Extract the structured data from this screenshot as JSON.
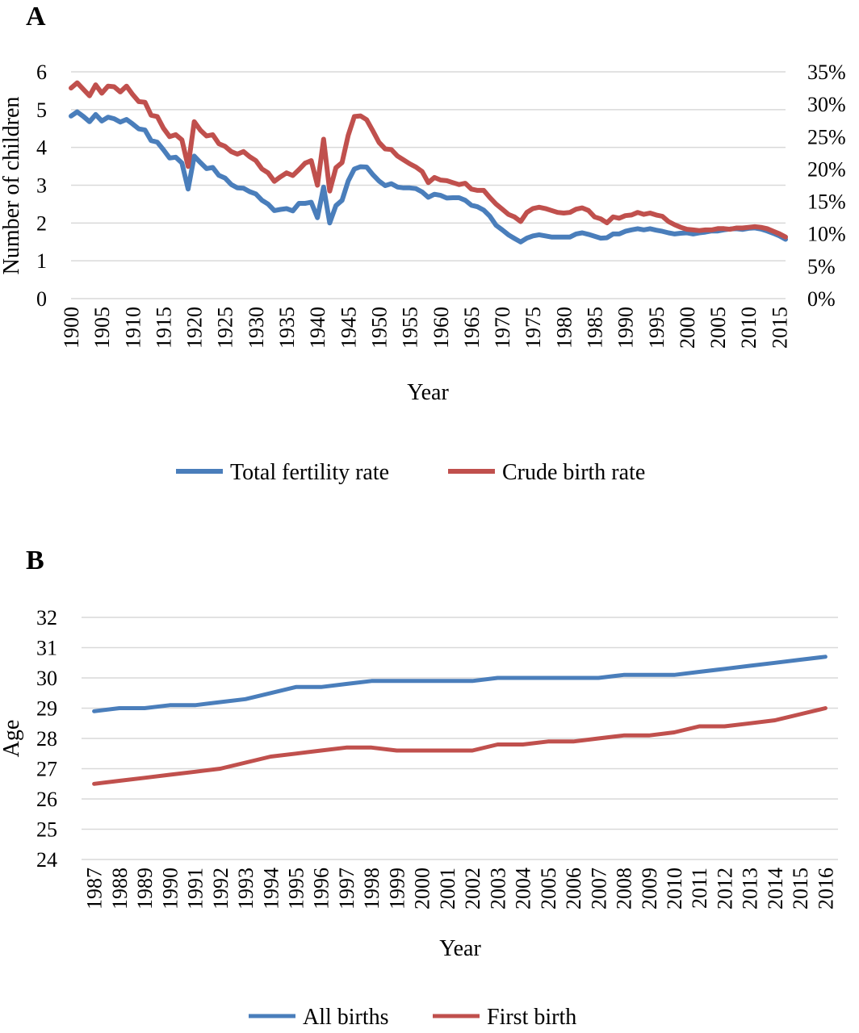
{
  "chart_data": [
    {
      "panel": "A",
      "type": "line",
      "xlabel": "Year",
      "ylabel": "Number of children",
      "ylim": [
        0,
        6
      ],
      "y_ticks": [
        "0",
        "1",
        "2",
        "3",
        "4",
        "5",
        "6"
      ],
      "y2lim": [
        0,
        35
      ],
      "y2_ticks": [
        "0%",
        "5%",
        "10%",
        "15%",
        "20%",
        "25%",
        "30%",
        "35%"
      ],
      "x_ticks": [
        "1900",
        "1905",
        "1910",
        "1915",
        "1920",
        "1925",
        "1930",
        "1935",
        "1940",
        "1945",
        "1950",
        "1955",
        "1960",
        "1965",
        "1970",
        "1975",
        "1980",
        "1985",
        "1990",
        "1995",
        "2000",
        "2005",
        "2010",
        "2015"
      ],
      "grid": true,
      "legend_position": "bottom",
      "x": [
        1900,
        1901,
        1902,
        1903,
        1904,
        1905,
        1906,
        1907,
        1908,
        1909,
        1910,
        1911,
        1912,
        1913,
        1914,
        1915,
        1916,
        1917,
        1918,
        1919,
        1920,
        1921,
        1922,
        1923,
        1924,
        1925,
        1926,
        1927,
        1928,
        1929,
        1930,
        1931,
        1932,
        1933,
        1934,
        1935,
        1936,
        1937,
        1938,
        1939,
        1940,
        1941,
        1942,
        1943,
        1944,
        1945,
        1946,
        1947,
        1948,
        1949,
        1950,
        1951,
        1952,
        1953,
        1954,
        1955,
        1956,
        1957,
        1958,
        1959,
        1960,
        1961,
        1962,
        1963,
        1964,
        1965,
        1966,
        1967,
        1968,
        1969,
        1970,
        1971,
        1972,
        1973,
        1974,
        1975,
        1976,
        1977,
        1978,
        1979,
        1980,
        1981,
        1982,
        1983,
        1984,
        1985,
        1986,
        1987,
        1988,
        1989,
        1990,
        1991,
        1992,
        1993,
        1994,
        1995,
        1996,
        1997,
        1998,
        1999,
        2000,
        2001,
        2002,
        2003,
        2004,
        2005,
        2006,
        2007,
        2008,
        2009,
        2010,
        2011,
        2012,
        2013,
        2014,
        2015,
        2016
      ],
      "series": [
        {
          "name": "Total fertility rate",
          "axis": "left",
          "color": "#4a7ebb",
          "values": [
            4.83,
            4.94,
            4.82,
            4.68,
            4.87,
            4.7,
            4.8,
            4.76,
            4.67,
            4.74,
            4.62,
            4.49,
            4.46,
            4.18,
            4.14,
            3.94,
            3.72,
            3.74,
            3.59,
            2.9,
            3.77,
            3.6,
            3.44,
            3.47,
            3.26,
            3.19,
            3.02,
            2.93,
            2.92,
            2.83,
            2.77,
            2.6,
            2.5,
            2.33,
            2.36,
            2.38,
            2.32,
            2.52,
            2.52,
            2.55,
            2.14,
            2.95,
            2.0,
            2.46,
            2.6,
            3.11,
            3.43,
            3.49,
            3.48,
            3.28,
            3.11,
            2.99,
            3.04,
            2.95,
            2.93,
            2.93,
            2.91,
            2.82,
            2.68,
            2.76,
            2.73,
            2.66,
            2.67,
            2.67,
            2.6,
            2.47,
            2.43,
            2.34,
            2.18,
            1.94,
            1.82,
            1.69,
            1.59,
            1.5,
            1.6,
            1.66,
            1.69,
            1.66,
            1.63,
            1.63,
            1.63,
            1.63,
            1.71,
            1.74,
            1.7,
            1.65,
            1.6,
            1.61,
            1.71,
            1.71,
            1.78,
            1.82,
            1.85,
            1.82,
            1.85,
            1.81,
            1.78,
            1.74,
            1.71,
            1.73,
            1.74,
            1.71,
            1.74,
            1.76,
            1.79,
            1.79,
            1.82,
            1.84,
            1.85,
            1.83,
            1.86,
            1.87,
            1.84,
            1.79,
            1.73,
            1.66,
            1.57
          ]
        },
        {
          "name": "Crude birth rate",
          "axis": "right",
          "color": "#c0504d",
          "values": [
            32.5,
            33.3,
            32.3,
            31.3,
            33.0,
            31.7,
            32.8,
            32.7,
            31.9,
            32.8,
            31.5,
            30.4,
            30.3,
            28.3,
            28.1,
            26.3,
            25.0,
            25.3,
            24.5,
            20.4,
            27.3,
            26.0,
            25.1,
            25.3,
            23.9,
            23.5,
            22.7,
            22.3,
            22.7,
            21.9,
            21.3,
            20.0,
            19.4,
            18.1,
            18.8,
            19.4,
            19.0,
            19.9,
            20.9,
            21.3,
            17.5,
            24.6,
            16.6,
            20.2,
            21.0,
            25.2,
            28.1,
            28.2,
            27.6,
            25.9,
            24.1,
            23.1,
            23.0,
            22.0,
            21.4,
            20.8,
            20.3,
            19.6,
            17.9,
            18.7,
            18.3,
            18.2,
            17.9,
            17.6,
            17.8,
            16.9,
            16.7,
            16.7,
            15.6,
            14.6,
            13.8,
            13.0,
            12.6,
            11.9,
            13.3,
            13.9,
            14.1,
            13.9,
            13.6,
            13.3,
            13.2,
            13.3,
            13.8,
            14.0,
            13.6,
            12.6,
            12.3,
            11.7,
            12.6,
            12.4,
            12.8,
            12.9,
            13.3,
            13.0,
            13.2,
            12.9,
            12.7,
            11.9,
            11.4,
            11.0,
            10.7,
            10.6,
            10.5,
            10.6,
            10.6,
            10.8,
            10.8,
            10.7,
            10.9,
            10.9,
            11.0,
            11.1,
            11.0,
            10.8,
            10.4,
            10.0,
            9.5
          ]
        }
      ]
    },
    {
      "panel": "B",
      "type": "line",
      "xlabel": "Year",
      "ylabel": "Age",
      "ylim": [
        24,
        32
      ],
      "y_ticks": [
        "24",
        "25",
        "26",
        "27",
        "28",
        "29",
        "30",
        "31",
        "32"
      ],
      "categories": [
        "1987",
        "1988",
        "1989",
        "1990",
        "1991",
        "1992",
        "1993",
        "1994",
        "1995",
        "1996",
        "1997",
        "1998",
        "1999",
        "2000",
        "2001",
        "2002",
        "2003",
        "2004",
        "2005",
        "2006",
        "2007",
        "2008",
        "2009",
        "2010",
        "2011",
        "2012",
        "2013",
        "2014",
        "2015",
        "2016"
      ],
      "grid": true,
      "legend_position": "bottom",
      "series": [
        {
          "name": "All births",
          "color": "#4a7ebb",
          "values": [
            28.9,
            29.0,
            29.0,
            29.1,
            29.1,
            29.2,
            29.3,
            29.5,
            29.7,
            29.7,
            29.8,
            29.9,
            29.9,
            29.9,
            29.9,
            29.9,
            30.0,
            30.0,
            30.0,
            30.0,
            30.0,
            30.1,
            30.1,
            30.1,
            30.2,
            30.3,
            30.4,
            30.5,
            30.6,
            30.7
          ]
        },
        {
          "name": "First birth",
          "color": "#c0504d",
          "values": [
            26.5,
            26.6,
            26.7,
            26.8,
            26.9,
            27.0,
            27.2,
            27.4,
            27.5,
            27.6,
            27.7,
            27.7,
            27.6,
            27.6,
            27.6,
            27.6,
            27.8,
            27.8,
            27.9,
            27.9,
            28.0,
            28.1,
            28.1,
            28.2,
            28.4,
            28.4,
            28.5,
            28.6,
            28.8,
            29.0
          ]
        }
      ]
    }
  ]
}
